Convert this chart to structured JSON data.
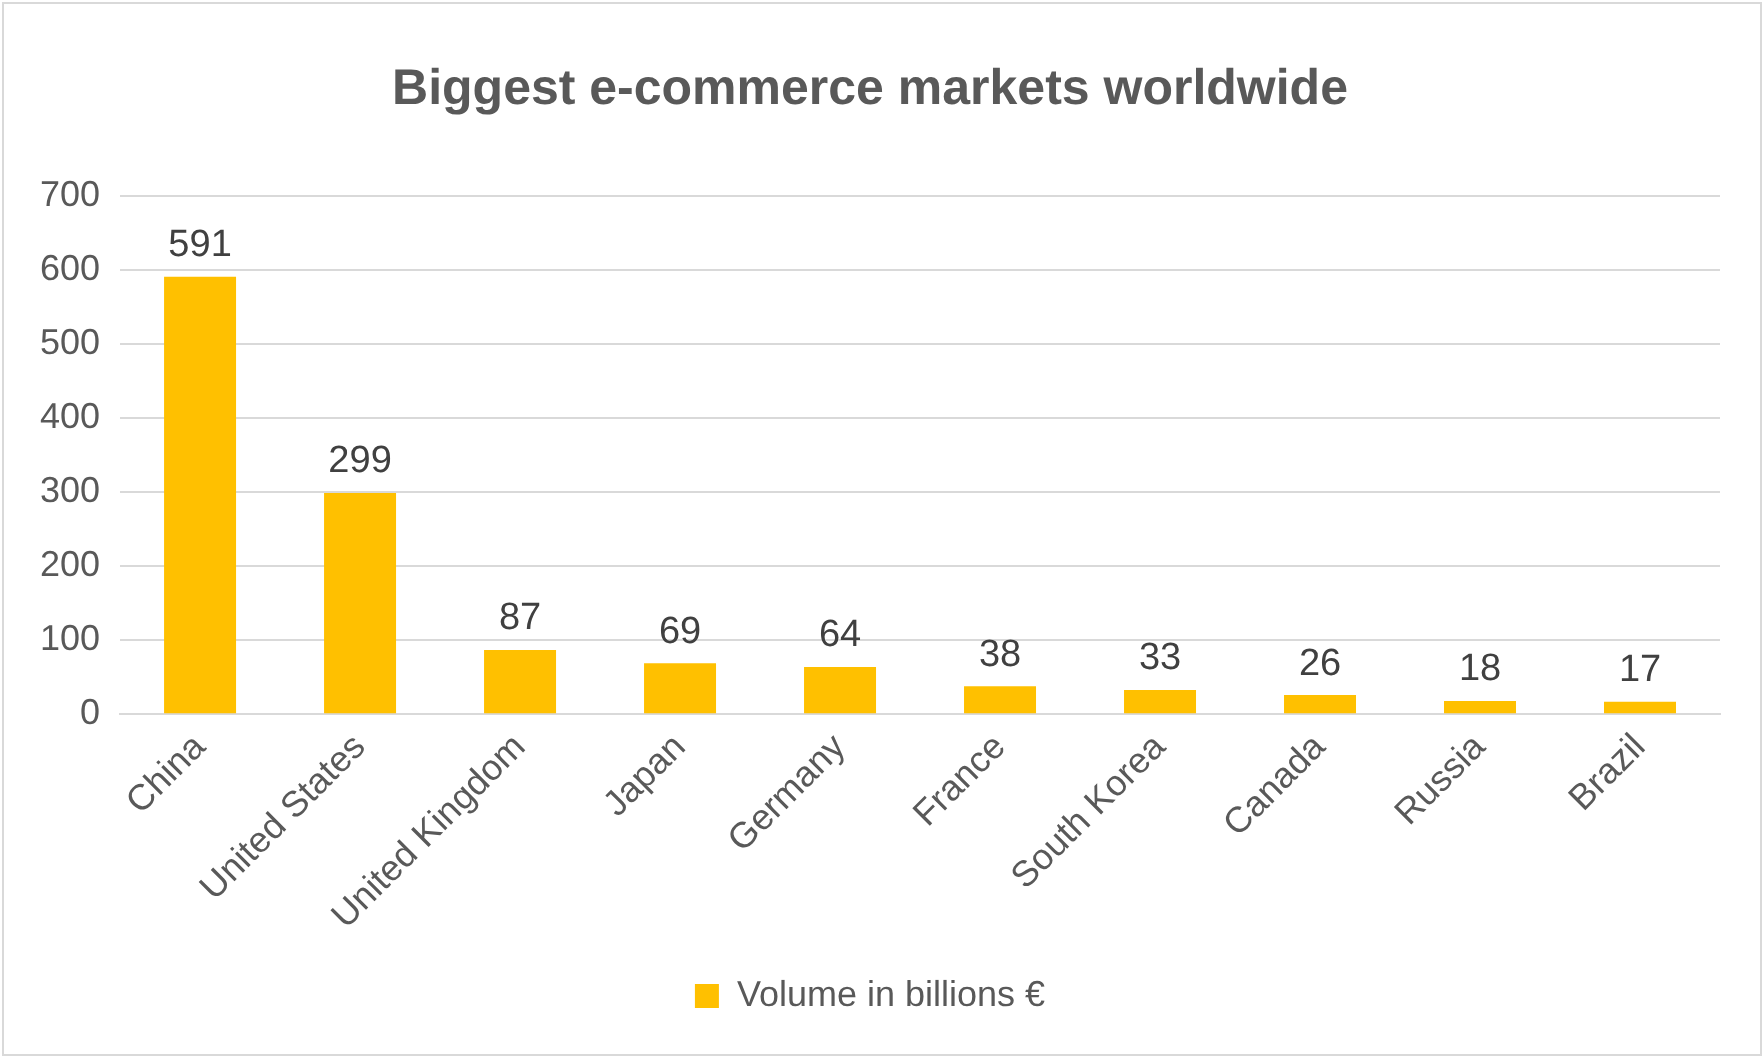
{
  "chart_data": {
    "type": "bar",
    "title": "Biggest e-commerce markets worldwide",
    "categories": [
      "China",
      "United States",
      "United Kingdom",
      "Japan",
      "Germany",
      "France",
      "South Korea",
      "Canada",
      "Russia",
      "Brazil"
    ],
    "series": [
      {
        "name": "Volume in billions €",
        "color": "#ffc000",
        "values": [
          591,
          299,
          87,
          69,
          64,
          38,
          33,
          26,
          18,
          17
        ]
      }
    ],
    "ylim": [
      0,
      700
    ],
    "yticks": [
      0,
      100,
      200,
      300,
      400,
      500,
      600,
      700
    ],
    "grid": "y",
    "legend": "bottom",
    "data_labels": true
  }
}
